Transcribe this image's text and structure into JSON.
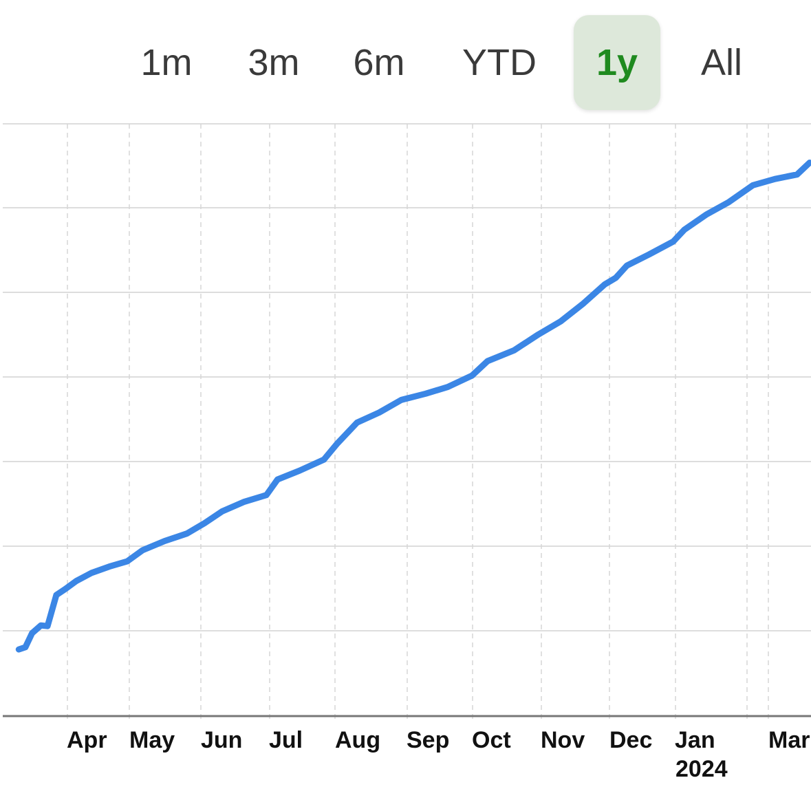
{
  "range_selector": {
    "options": [
      "1m",
      "3m",
      "6m",
      "YTD",
      "1y",
      "All"
    ],
    "selected": "1y"
  },
  "colors": {
    "line": "#3b86e5",
    "active_bg": "#dde8da",
    "active_text": "#1f8a1f"
  },
  "chart_data": {
    "type": "line",
    "x_tick_labels": [
      "Apr",
      "May",
      "Jun",
      "Jul",
      "Aug",
      "Sep",
      "Oct",
      "Nov",
      "Dec",
      "Jan",
      "Mar"
    ],
    "year_label": "2024",
    "grid": true,
    "series": [
      {
        "x": [
          "2023-03-10",
          "2023-03-13",
          "2023-03-16",
          "2023-03-20",
          "2023-03-23",
          "2023-03-27",
          "2023-03-31",
          "2023-04-05",
          "2023-04-12",
          "2023-04-20",
          "2023-04-28",
          "2023-05-05",
          "2023-05-15",
          "2023-05-25",
          "2023-06-02",
          "2023-06-10",
          "2023-06-20",
          "2023-06-30",
          "2023-07-05",
          "2023-07-15",
          "2023-07-26",
          "2023-08-01",
          "2023-08-10",
          "2023-08-20",
          "2023-08-30",
          "2023-09-10",
          "2023-09-20",
          "2023-10-01",
          "2023-10-08",
          "2023-10-20",
          "2023-10-31",
          "2023-11-10",
          "2023-11-20",
          "2023-11-30",
          "2023-12-05",
          "2023-12-10",
          "2023-12-20",
          "2023-12-31",
          "2024-01-05",
          "2024-01-15",
          "2024-01-25",
          "2024-02-05",
          "2024-02-15",
          "2024-02-25",
          "2024-03-05"
        ],
        "y": [
          18,
          18.6,
          22.4,
          24.5,
          24.3,
          32.7,
          34.3,
          36.5,
          38.7,
          40.4,
          41.8,
          44.8,
          47.3,
          49.3,
          52.1,
          55.3,
          57.9,
          59.7,
          63.9,
          66.3,
          69.3,
          73.6,
          79.3,
          82,
          85.4,
          87.1,
          88.9,
          92,
          95.9,
          98.8,
          103.1,
          106.6,
          111.3,
          116.6,
          118.4,
          121.7,
          124.7,
          128.2,
          131.4,
          135.5,
          138.8,
          143.4,
          145.1,
          146.3,
          149.5
        ]
      }
    ]
  }
}
